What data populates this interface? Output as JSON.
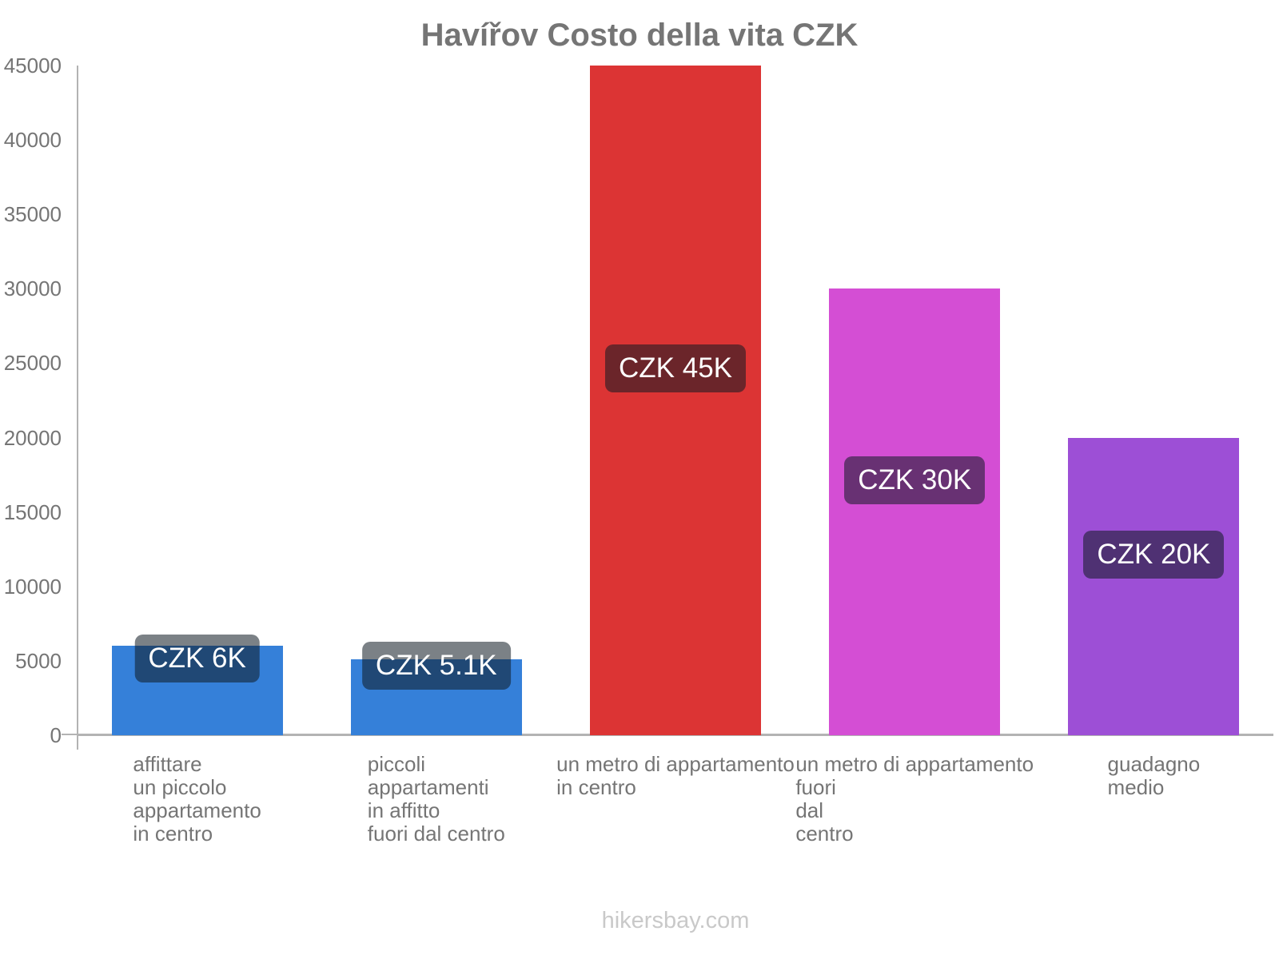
{
  "chart_data": {
    "type": "bar",
    "title": "Havířov Costo della vita CZK",
    "currency": "CZK",
    "categories": [
      [
        "affittare",
        "un piccolo",
        "appartamento",
        "in centro"
      ],
      [
        "piccoli",
        "appartamenti",
        "in affitto",
        "fuori dal centro"
      ],
      [
        "un metro di appartamento",
        "in centro"
      ],
      [
        "un metro di appartamento",
        "fuori",
        "dal",
        "centro"
      ],
      [
        "guadagno",
        "medio"
      ]
    ],
    "values": [
      6000,
      5100,
      45000,
      30000,
      20000
    ],
    "value_labels": [
      "CZK 6K",
      "CZK 5.1K",
      "CZK 45K",
      "CZK 30K",
      "CZK 20K"
    ],
    "bar_colors": [
      "#3580d9",
      "#3580d9",
      "#dc3434",
      "#d44ed4",
      "#9d4fd6"
    ],
    "ylim": [
      0,
      45000
    ],
    "ytick_step": 5000,
    "ytick_labels": [
      "0",
      "5000",
      "10000",
      "15000",
      "20000",
      "25000",
      "30000",
      "35000",
      "40000",
      "45000"
    ],
    "grid": false,
    "legend": "none",
    "axis_color": "#b3b3b3",
    "text_color": "#757575",
    "value_label_bg": "rgba(15,25,35,0.55)",
    "value_label_text_color": "#ffffff",
    "footer": "hikersbay.com",
    "footer_color": "#c9c9c9"
  }
}
